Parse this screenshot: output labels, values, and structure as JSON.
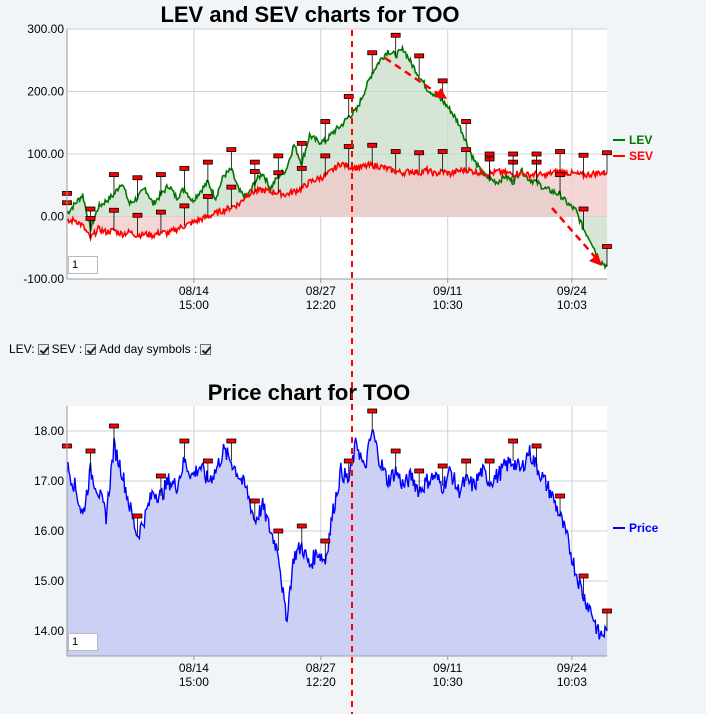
{
  "chart_data": [
    {
      "type": "line",
      "title": "LEV and SEV charts for TOO",
      "ylim": [
        -100,
        300
      ],
      "y_ticks": [
        "300.00",
        "200.00",
        "100.00",
        "0.00",
        "-100.00"
      ],
      "x_ticks": [
        {
          "date": "08/14",
          "time": "15:00"
        },
        {
          "date": "08/27",
          "time": "12:20"
        },
        {
          "date": "09/11",
          "time": "10:30"
        },
        {
          "date": "09/24",
          "time": "10:03"
        }
      ],
      "series": [
        {
          "name": "LEV",
          "color": "#007700",
          "values": [
            5,
            20,
            35,
            -20,
            15,
            25,
            35,
            55,
            20,
            30,
            45,
            20,
            35,
            50,
            30,
            45,
            25,
            40,
            55,
            30,
            65,
            75,
            40,
            30,
            55,
            70,
            45,
            65,
            75,
            115,
            85,
            130,
            120,
            120,
            135,
            145,
            160,
            170,
            200,
            230,
            250,
            265,
            258,
            268,
            245,
            225,
            205,
            195,
            185,
            170,
            150,
            120,
            90,
            70,
            60,
            55,
            65,
            55,
            75,
            60,
            55,
            45,
            40,
            35,
            20,
            10,
            -20,
            -40,
            -70,
            -80
          ]
        },
        {
          "name": "SEV",
          "color": "#ff0000",
          "values": [
            -10,
            -5,
            -15,
            -35,
            -20,
            -25,
            -22,
            -28,
            -25,
            -30,
            -28,
            -30,
            -25,
            -27,
            -20,
            -15,
            -10,
            -5,
            0,
            5,
            10,
            15,
            20,
            35,
            40,
            42,
            40,
            38,
            35,
            40,
            45,
            55,
            60,
            65,
            75,
            85,
            80,
            78,
            80,
            82,
            80,
            76,
            72,
            70,
            73,
            70,
            74,
            68,
            72,
            68,
            73,
            75,
            72,
            70,
            68,
            72,
            70,
            68,
            70,
            66,
            68,
            65,
            70,
            72,
            70,
            68,
            66,
            68,
            70,
            70
          ]
        }
      ],
      "legend": "right",
      "zoom_value": "1"
    },
    {
      "type": "area",
      "title": "Price chart for TOO",
      "ylim": [
        13.5,
        18.5
      ],
      "y_ticks": [
        "18.00",
        "17.00",
        "16.00",
        "15.00",
        "14.00"
      ],
      "x_ticks": [
        {
          "date": "08/14",
          "time": "15:00"
        },
        {
          "date": "08/27",
          "time": "12:20"
        },
        {
          "date": "09/11",
          "time": "10:30"
        },
        {
          "date": "09/24",
          "time": "10:03"
        }
      ],
      "series": [
        {
          "name": "Price",
          "color": "#0000ff",
          "fill": "#ccd0f5",
          "values": [
            17.3,
            16.9,
            16.3,
            17.2,
            16.8,
            16.3,
            17.7,
            17.2,
            16.5,
            15.9,
            16.3,
            16.8,
            16.7,
            17.0,
            16.9,
            17.4,
            17.1,
            17.3,
            17.0,
            17.2,
            17.6,
            17.4,
            17.1,
            16.8,
            16.2,
            16.5,
            16.0,
            15.6,
            14.2,
            15.5,
            15.7,
            15.3,
            15.6,
            15.4,
            16.4,
            17.2,
            17.0,
            17.8,
            17.2,
            18.0,
            17.4,
            17.0,
            17.2,
            16.9,
            17.1,
            16.8,
            17.0,
            17.1,
            16.9,
            17.2,
            16.8,
            17.0,
            16.9,
            17.2,
            17.0,
            17.1,
            17.3,
            17.4,
            17.2,
            17.6,
            17.3,
            17.0,
            16.7,
            16.3,
            15.8,
            15.2,
            14.7,
            14.4,
            13.9,
            14.0
          ]
        }
      ],
      "legend": "right",
      "zoom_value": "1"
    }
  ],
  "controls": {
    "lev_label": "LEV:",
    "sev_label": "SEV :",
    "day_symbols_label": "Add day symbols :"
  },
  "colors": {
    "day_marker": "#ff0000",
    "dashed_annotation": "#ff0000",
    "sev_fill": "#f0c8c8",
    "lev_fill": "#c8dcc8"
  }
}
